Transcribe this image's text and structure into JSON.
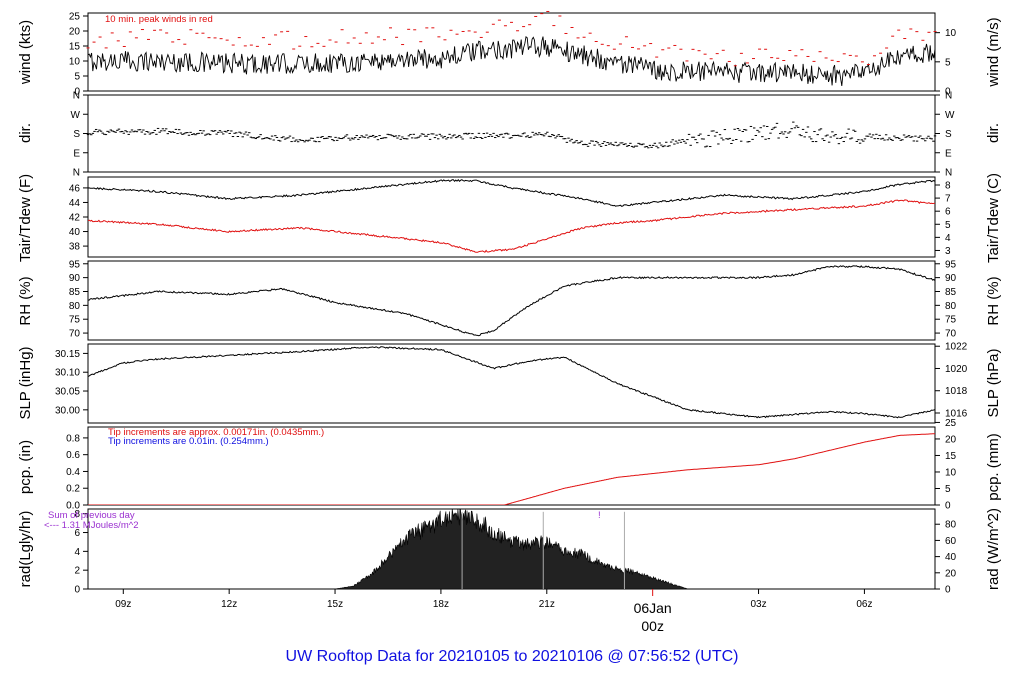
{
  "title": "UW Rooftop Data for 20210105  to  20210106 @ 07:56:52  (UTC)",
  "x_ticks": [
    "09z",
    "12z",
    "15z",
    "18z",
    "21z",
    "03z",
    "06z"
  ],
  "day_marker": {
    "day": "06Jan",
    "hour": "00z"
  },
  "colors": {
    "title": "#1010e0",
    "tdew": "#e01010",
    "peak": "#e01010",
    "pcp_in": "#e01010",
    "pcp_mm": "#1010e0",
    "annotation": "#9a30d0",
    "day_marker": "#e01010"
  },
  "chart_data": [
    {
      "type": "line",
      "ylabel": "wind (kts)",
      "ylabel_right": "wind (m/s)",
      "yticks": [
        "0",
        "5",
        "10",
        "15",
        "20",
        "25"
      ],
      "yticks_right": [
        "0",
        "5",
        "10"
      ],
      "annotation": "10 min. peak winds in red",
      "x_hours": [
        8,
        10,
        12,
        14,
        16,
        18,
        19.5,
        21,
        22,
        24,
        26,
        28,
        29.5,
        30,
        31,
        32
      ],
      "series": [
        {
          "values": [
            10,
            10,
            9,
            9,
            10,
            11,
            14,
            15,
            12,
            7,
            6,
            6,
            5,
            6,
            11,
            13
          ]
        },
        {
          "values": [
            17,
            18,
            17,
            17,
            18,
            19,
            21,
            24,
            20,
            13,
            11,
            11,
            10,
            11,
            18,
            20
          ]
        }
      ],
      "ylim": [
        0,
        26
      ]
    },
    {
      "type": "scatter",
      "ylabel": "dir.",
      "ylabel_right": "dir.",
      "yticks": [
        "N",
        "E",
        "S",
        "W",
        "N"
      ],
      "yticks_right": [
        "N",
        "E",
        "S",
        "W",
        "N"
      ],
      "x_hours": [
        8,
        10,
        12,
        14,
        16,
        18,
        20,
        21,
        22,
        24,
        25,
        26,
        27,
        28,
        29,
        30,
        31,
        32
      ],
      "values_deg": [
        185,
        190,
        180,
        150,
        165,
        165,
        170,
        175,
        135,
        120,
        150,
        160,
        185,
        200,
        160,
        165,
        160,
        155
      ],
      "ylim": [
        0,
        360
      ]
    },
    {
      "type": "line",
      "ylabel": "Tair/Tdew (F)",
      "ylabel_right": "Tair/Tdew (C)",
      "yticks": [
        "38",
        "40",
        "42",
        "44",
        "46"
      ],
      "yticks_right": [
        "3",
        "4",
        "5",
        "6",
        "7",
        "8"
      ],
      "x_hours": [
        8,
        10,
        12,
        14,
        16,
        18,
        19,
        20,
        22,
        23,
        24,
        26,
        28,
        30,
        31,
        32
      ],
      "series": [
        {
          "values": [
            46,
            45.5,
            44.5,
            45,
            46,
            47,
            47,
            46,
            44.5,
            43.5,
            44,
            45,
            44.5,
            45.5,
            46.5,
            47
          ]
        },
        {
          "values": [
            41.5,
            41,
            40,
            40.5,
            39.5,
            38.5,
            37.2,
            37.5,
            40.5,
            41.2,
            41.5,
            42.5,
            43,
            43.5,
            44.3,
            43.8
          ]
        }
      ],
      "ylim": [
        36.5,
        47.5
      ]
    },
    {
      "type": "line",
      "ylabel": "RH (%)",
      "ylabel_right": "RH (%)",
      "yticks": [
        "70",
        "75",
        "80",
        "85",
        "90",
        "95"
      ],
      "yticks_right": [
        "70",
        "75",
        "80",
        "85",
        "90",
        "95"
      ],
      "x_hours": [
        8,
        10,
        12,
        13.5,
        15,
        17,
        18,
        19,
        19.5,
        20.5,
        21.5,
        23,
        25,
        27,
        28,
        29,
        30,
        31,
        32
      ],
      "values": [
        82,
        85,
        84,
        86,
        81,
        77,
        73,
        69,
        71,
        80,
        87,
        90,
        90,
        90,
        91,
        94,
        94,
        93,
        89
      ],
      "ylim": [
        67.5,
        96
      ]
    },
    {
      "type": "line",
      "ylabel": "SLP (inHg)",
      "ylabel_right": "SLP (hPa)",
      "yticks": [
        "30.00",
        "30.05",
        "30.10",
        "30.15"
      ],
      "yticks_right": [
        "1016",
        "1018",
        "1020",
        "1022"
      ],
      "x_hours": [
        8,
        9,
        10,
        12,
        14,
        16,
        18,
        19.5,
        20.5,
        21.5,
        23,
        25,
        27,
        29,
        30,
        31,
        32
      ],
      "values": [
        30.09,
        30.125,
        30.135,
        30.145,
        30.155,
        30.167,
        30.16,
        30.11,
        30.13,
        30.14,
        30.07,
        30.0,
        29.98,
        29.995,
        29.99,
        29.98,
        30.0
      ],
      "ylim": [
        29.965,
        30.175
      ]
    },
    {
      "type": "line",
      "ylabel": "pcp. (in)",
      "ylabel_right": "pcp. (mm)",
      "yticks": [
        "0.0",
        "0.2",
        "0.4",
        "0.6",
        "0.8"
      ],
      "yticks_right": [
        "0",
        "5",
        "10",
        "15",
        "20",
        "25"
      ],
      "notes": [
        "Tip increments are approx. 0.00171in. (0.0435mm.)",
        "Tip increments are 0.01in. (0.254mm.)"
      ],
      "x_hours": [
        8,
        18,
        19.8,
        21.5,
        23,
        25,
        27,
        28,
        30,
        31,
        32
      ],
      "values": [
        0,
        0,
        0,
        0.2,
        0.33,
        0.42,
        0.48,
        0.55,
        0.75,
        0.83,
        0.85
      ],
      "ylim": [
        0,
        0.93
      ]
    },
    {
      "type": "area",
      "ylabel": "rad(Lgly/hr)",
      "ylabel_right": "rad (W/m^2)",
      "yticks": [
        "0",
        "2",
        "4",
        "6",
        "8"
      ],
      "yticks_right": [
        "0",
        "20",
        "40",
        "60",
        "80"
      ],
      "annotations": [
        "Sum of previous day",
        "<--- 1.31 MJoules/m^2",
        "!"
      ],
      "x_hours": [
        15,
        15.5,
        16,
        16.5,
        17,
        17.5,
        18,
        18.5,
        19,
        19.5,
        20,
        20.5,
        21,
        21.5,
        22,
        22.5,
        23,
        23.5,
        24,
        24.5,
        25
      ],
      "values": [
        0,
        0.3,
        1.5,
        3.5,
        5.5,
        6.5,
        7.5,
        8.2,
        7.6,
        6.2,
        5.2,
        4.8,
        5.2,
        4.2,
        3.8,
        2.8,
        2.2,
        1.8,
        1.2,
        0.6,
        0
      ],
      "ylim": [
        0,
        8.5
      ]
    }
  ]
}
